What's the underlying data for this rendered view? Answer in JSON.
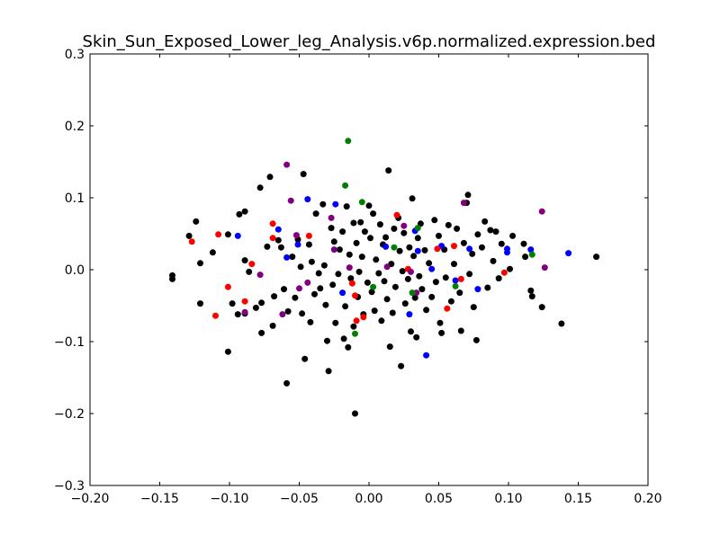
{
  "chart_data": {
    "type": "scatter",
    "title": "Skin_Sun_Exposed_Lower_leg_Analysis.v6p.normalized.expression.bed",
    "xlabel": "",
    "ylabel": "",
    "xlim": [
      -0.2,
      0.2
    ],
    "ylim": [
      -0.3,
      0.3
    ],
    "xticks": [
      "−0.20",
      "−0.15",
      "−0.10",
      "−0.05",
      "0.00",
      "0.05",
      "0.10",
      "0.15",
      "0.20"
    ],
    "yticks": [
      "0.3",
      "0.2",
      "0.1",
      "0.0",
      "−0.1",
      "−0.2",
      "−0.3"
    ],
    "xtick_values": [
      -0.2,
      -0.15,
      -0.1,
      -0.05,
      0.0,
      0.05,
      0.1,
      0.15,
      0.2
    ],
    "ytick_values": [
      0.3,
      0.2,
      0.1,
      0.0,
      -0.1,
      -0.2,
      -0.3
    ],
    "grid": false,
    "series": [
      {
        "color": "#000000",
        "points": [
          [
            -0.141,
            -0.013
          ],
          [
            -0.141,
            -0.008
          ],
          [
            -0.129,
            0.047
          ],
          [
            -0.124,
            0.067
          ],
          [
            -0.121,
            0.009
          ],
          [
            -0.121,
            -0.047
          ],
          [
            -0.112,
            0.024
          ],
          [
            -0.101,
            0.049
          ],
          [
            -0.101,
            -0.114
          ],
          [
            -0.098,
            -0.047
          ],
          [
            -0.094,
            -0.062
          ],
          [
            -0.093,
            0.077
          ],
          [
            -0.089,
            -0.061
          ],
          [
            -0.089,
            0.081
          ],
          [
            -0.089,
            0.013
          ],
          [
            -0.086,
            -0.003
          ],
          [
            -0.081,
            -0.053
          ],
          [
            -0.078,
            0.114
          ],
          [
            -0.077,
            -0.088
          ],
          [
            -0.077,
            -0.046
          ],
          [
            -0.073,
            0.032
          ],
          [
            -0.071,
            0.129
          ],
          [
            -0.068,
            -0.037
          ],
          [
            -0.069,
            -0.078
          ],
          [
            -0.065,
            0.041
          ],
          [
            -0.063,
            0.031
          ],
          [
            -0.061,
            -0.027
          ],
          [
            -0.059,
            -0.158
          ],
          [
            -0.058,
            -0.058
          ],
          [
            -0.055,
            0.018
          ],
          [
            -0.053,
            -0.039
          ],
          [
            -0.051,
            0.042
          ],
          [
            -0.049,
            0.004
          ],
          [
            -0.048,
            -0.061
          ],
          [
            -0.047,
            0.133
          ],
          [
            -0.046,
            -0.124
          ],
          [
            -0.043,
            0.035
          ],
          [
            -0.042,
            -0.073
          ],
          [
            -0.041,
            0.011
          ],
          [
            -0.039,
            -0.034
          ],
          [
            -0.038,
            0.078
          ],
          [
            -0.036,
            -0.005
          ],
          [
            -0.035,
            -0.026
          ],
          [
            -0.033,
            0.091
          ],
          [
            -0.032,
            0.006
          ],
          [
            -0.031,
            -0.049
          ],
          [
            -0.03,
            -0.099
          ],
          [
            -0.029,
            -0.141
          ],
          [
            -0.027,
            0.058
          ],
          [
            -0.026,
            -0.021
          ],
          [
            -0.025,
            0.039
          ],
          [
            -0.024,
            -0.074
          ],
          [
            -0.022,
            -0.006
          ],
          [
            -0.021,
            0.028
          ],
          [
            -0.019,
            0.053
          ],
          [
            -0.018,
            -0.096
          ],
          [
            -0.017,
            -0.051
          ],
          [
            -0.016,
            0.088
          ],
          [
            -0.015,
            -0.108
          ],
          [
            -0.014,
            0.021
          ],
          [
            -0.013,
            -0.012
          ],
          [
            -0.011,
            0.065
          ],
          [
            -0.011,
            -0.079
          ],
          [
            -0.01,
            -0.2
          ],
          [
            -0.009,
            0.037
          ],
          [
            -0.008,
            -0.038
          ],
          [
            -0.007,
            -0.003
          ],
          [
            -0.006,
            0.066
          ],
          [
            -0.005,
            0.018
          ],
          [
            -0.004,
            -0.062
          ],
          [
            -0.003,
            0.053
          ],
          [
            -0.001,
            -0.018
          ],
          [
            0.0,
            0.089
          ],
          [
            0.001,
            0.044
          ],
          [
            0.002,
            -0.031
          ],
          [
            0.003,
            0.078
          ],
          [
            0.004,
            -0.057
          ],
          [
            0.005,
            0.014
          ],
          [
            0.007,
            -0.005
          ],
          [
            0.008,
            0.063
          ],
          [
            0.009,
            -0.071
          ],
          [
            0.01,
            0.035
          ],
          [
            0.011,
            -0.016
          ],
          [
            0.012,
            0.045
          ],
          [
            0.013,
            -0.041
          ],
          [
            0.014,
            0.138
          ],
          [
            0.015,
            -0.107
          ],
          [
            0.016,
            0.008
          ],
          [
            0.017,
            -0.06
          ],
          [
            0.018,
            0.057
          ],
          [
            0.019,
            -0.024
          ],
          [
            0.021,
            0.072
          ],
          [
            0.022,
            0.026
          ],
          [
            0.023,
            -0.134
          ],
          [
            0.024,
            -0.002
          ],
          [
            0.025,
            0.051
          ],
          [
            0.026,
            -0.047
          ],
          [
            0.028,
            -0.013
          ],
          [
            0.029,
            0.031
          ],
          [
            0.03,
            -0.086
          ],
          [
            0.031,
            0.099
          ],
          [
            0.032,
            0.019
          ],
          [
            0.033,
            -0.039
          ],
          [
            0.034,
            -0.094
          ],
          [
            0.035,
            0.044
          ],
          [
            0.036,
            -0.009
          ],
          [
            0.037,
            0.064
          ],
          [
            0.038,
            -0.027
          ],
          [
            0.04,
            0.027
          ],
          [
            0.041,
            -0.056
          ],
          [
            0.043,
            0.009
          ],
          [
            0.045,
            -0.038
          ],
          [
            0.047,
            0.069
          ],
          [
            0.048,
            -0.017
          ],
          [
            0.05,
            0.047
          ],
          [
            0.051,
            -0.074
          ],
          [
            0.052,
            -0.088
          ],
          [
            0.054,
            0.028
          ],
          [
            0.055,
            -0.011
          ],
          [
            0.057,
            0.062
          ],
          [
            0.059,
            -0.044
          ],
          [
            0.061,
            0.008
          ],
          [
            0.063,
            0.057
          ],
          [
            0.065,
            -0.032
          ],
          [
            0.066,
            -0.085
          ],
          [
            0.068,
            0.037
          ],
          [
            0.07,
            0.093
          ],
          [
            0.071,
            0.104
          ],
          [
            0.072,
            -0.006
          ],
          [
            0.074,
            0.022
          ],
          [
            0.075,
            -0.052
          ],
          [
            0.077,
            -0.098
          ],
          [
            0.078,
            0.049
          ],
          [
            0.081,
            0.031
          ],
          [
            0.083,
            0.067
          ],
          [
            0.085,
            -0.025
          ],
          [
            0.087,
            0.055
          ],
          [
            0.089,
            0.012
          ],
          [
            0.091,
            0.053
          ],
          [
            0.093,
            -0.012
          ],
          [
            0.095,
            0.036
          ],
          [
            0.101,
            0.001
          ],
          [
            0.103,
            0.047
          ],
          [
            0.111,
            0.036
          ],
          [
            0.112,
            0.018
          ],
          [
            0.116,
            -0.029
          ],
          [
            0.117,
            -0.037
          ],
          [
            0.124,
            -0.052
          ],
          [
            0.138,
            -0.075
          ],
          [
            0.163,
            0.018
          ]
        ]
      },
      {
        "color": "#0000ff",
        "points": [
          [
            -0.094,
            0.047
          ],
          [
            -0.065,
            0.056
          ],
          [
            -0.059,
            0.017
          ],
          [
            -0.051,
            0.035
          ],
          [
            -0.044,
            0.098
          ],
          [
            -0.024,
            0.091
          ],
          [
            -0.019,
            -0.032
          ],
          [
            0.012,
            0.032
          ],
          [
            0.029,
            -0.062
          ],
          [
            0.033,
            0.054
          ],
          [
            0.035,
            0.026
          ],
          [
            0.041,
            -0.119
          ],
          [
            0.045,
            0.001
          ],
          [
            0.052,
            0.033
          ],
          [
            0.062,
            -0.015
          ],
          [
            0.072,
            0.029
          ],
          [
            0.078,
            -0.027
          ],
          [
            0.099,
            0.024
          ],
          [
            0.099,
            0.029
          ],
          [
            0.116,
            0.028
          ],
          [
            0.143,
            0.023
          ]
        ]
      },
      {
        "color": "#ff0000",
        "points": [
          [
            -0.127,
            0.039
          ],
          [
            -0.11,
            -0.064
          ],
          [
            -0.108,
            0.049
          ],
          [
            -0.101,
            -0.024
          ],
          [
            -0.089,
            -0.044
          ],
          [
            -0.084,
            0.008
          ],
          [
            -0.069,
            0.064
          ],
          [
            -0.069,
            0.044
          ],
          [
            -0.043,
            0.047
          ],
          [
            -0.012,
            -0.019
          ],
          [
            -0.01,
            -0.036
          ],
          [
            -0.009,
            -0.071
          ],
          [
            -0.004,
            -0.066
          ],
          [
            0.02,
            0.076
          ],
          [
            0.028,
            0.001
          ],
          [
            0.049,
            0.029
          ],
          [
            0.056,
            -0.054
          ],
          [
            0.061,
            0.033
          ],
          [
            0.066,
            -0.013
          ],
          [
            0.097,
            -0.004
          ]
        ]
      },
      {
        "color": "#800080",
        "points": [
          [
            -0.089,
            -0.059
          ],
          [
            -0.078,
            -0.007
          ],
          [
            -0.062,
            -0.062
          ],
          [
            -0.059,
            0.146
          ],
          [
            -0.056,
            0.096
          ],
          [
            -0.052,
            0.048
          ],
          [
            -0.05,
            -0.026
          ],
          [
            -0.044,
            -0.018
          ],
          [
            -0.027,
            0.072
          ],
          [
            -0.025,
            0.028
          ],
          [
            -0.014,
            0.003
          ],
          [
            0.013,
            0.004
          ],
          [
            0.025,
            0.061
          ],
          [
            0.03,
            -0.003
          ],
          [
            0.034,
            -0.032
          ],
          [
            0.068,
            0.093
          ],
          [
            0.124,
            0.081
          ],
          [
            0.126,
            0.003
          ]
        ]
      },
      {
        "color": "#008000",
        "points": [
          [
            -0.015,
            0.179
          ],
          [
            -0.017,
            0.117
          ],
          [
            -0.005,
            0.094
          ],
          [
            -0.01,
            -0.089
          ],
          [
            0.003,
            -0.024
          ],
          [
            0.018,
            0.031
          ],
          [
            0.031,
            -0.032
          ],
          [
            0.035,
            0.058
          ],
          [
            0.062,
            -0.023
          ],
          [
            0.117,
            0.021
          ]
        ]
      }
    ]
  }
}
